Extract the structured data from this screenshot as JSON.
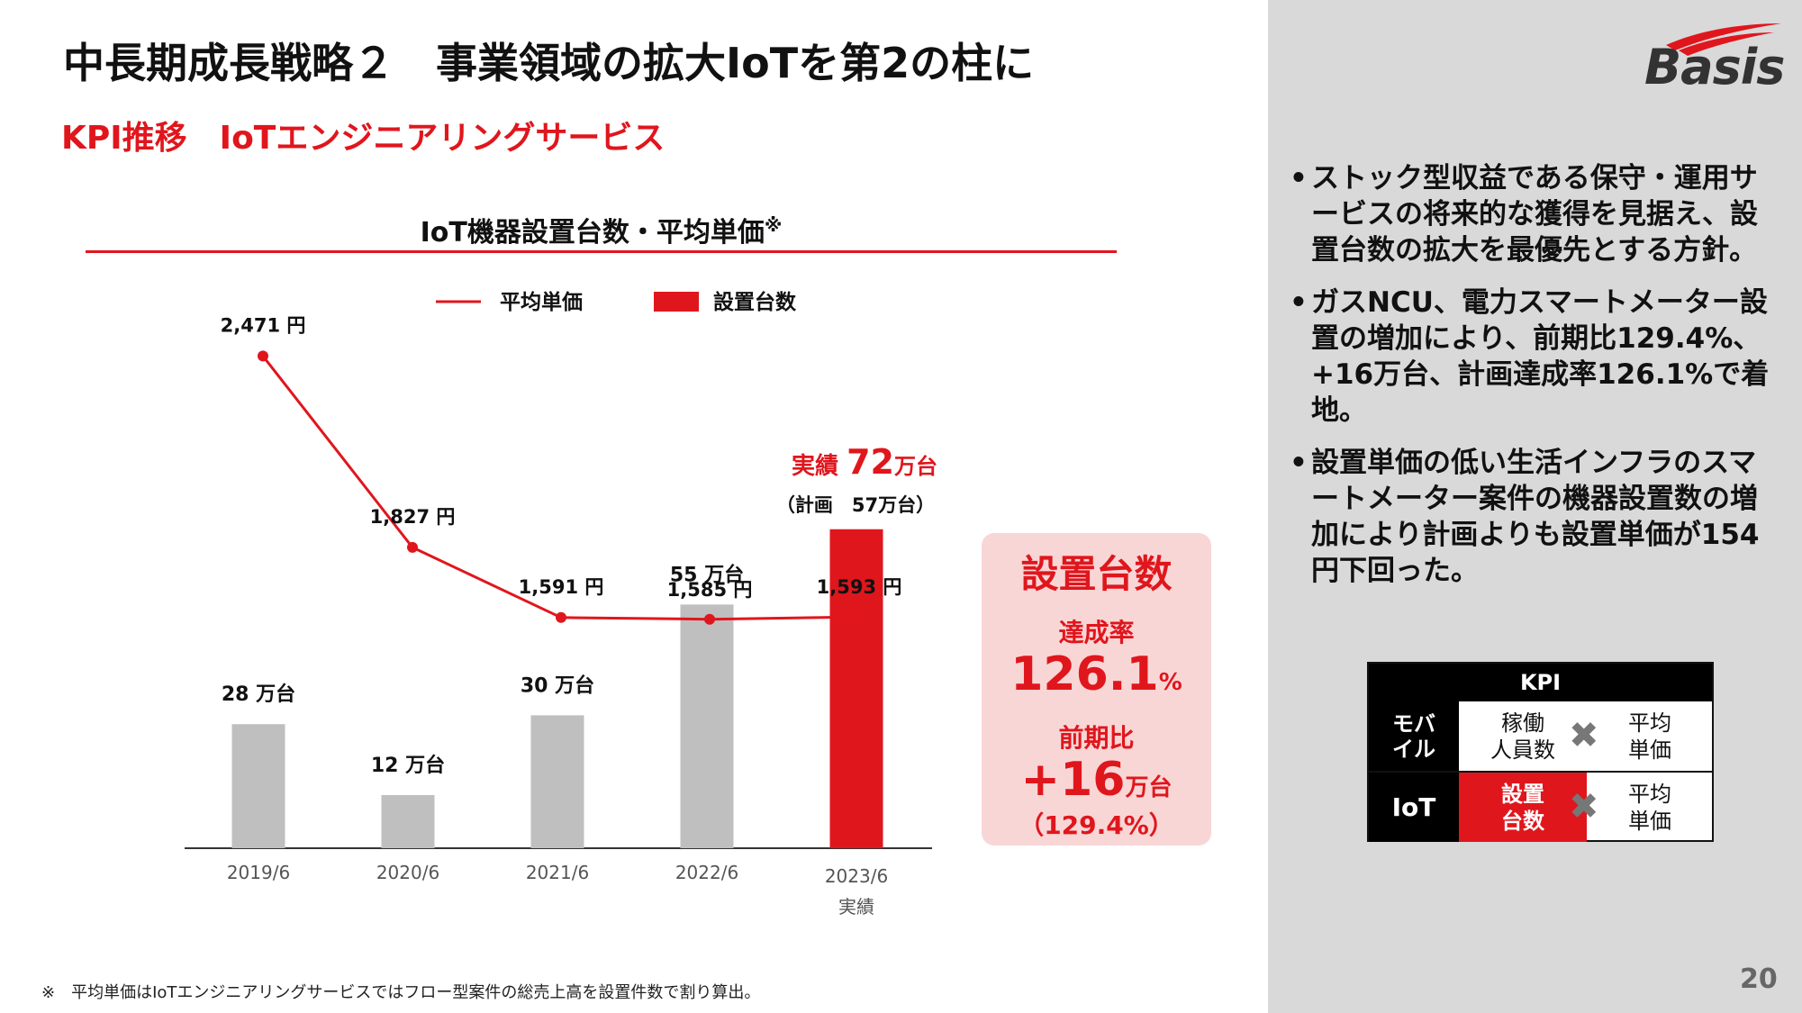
{
  "title": "中長期成長戦略２　事業領域の拡大IoTを第2の柱に",
  "subtitle": "KPI推移　IoTエンジニアリングサービス",
  "chart_title": "IoT機器設置台数・平均単価",
  "chart_title_mark": "※",
  "chart_data": {
    "type": "bar",
    "title": "IoT機器設置台数・平均単価※",
    "categories": [
      "2019/6",
      "2020/6",
      "2021/6",
      "2022/6",
      "2023/6"
    ],
    "category_sub": [
      "",
      "",
      "",
      "",
      "実績"
    ],
    "legend": [
      "平均単価",
      "設置台数"
    ],
    "series": [
      {
        "name": "設置台数",
        "type": "bar",
        "unit": "万台",
        "values": [
          28,
          12,
          30,
          55,
          72
        ],
        "labels": [
          "28 万台",
          "12 万台",
          "30 万台",
          "55 万台",
          ""
        ],
        "colors": [
          "#bfbfbf",
          "#bfbfbf",
          "#bfbfbf",
          "#bfbfbf",
          "#e0161d"
        ]
      },
      {
        "name": "平均単価",
        "type": "line",
        "unit": "円",
        "values": [
          2471,
          1827,
          1591,
          1585,
          1593
        ],
        "labels": [
          "2,471 円",
          "1,827 円",
          "1,591 円",
          "1,585 円",
          "1,593 円"
        ],
        "color": "#e0161d"
      }
    ],
    "last_bar_annotation": {
      "prefix": "実績",
      "value": "72",
      "unit": "万台",
      "plan": "（計画　57万台）"
    }
  },
  "kpi_box": {
    "title": "設置台数",
    "achievement_label": "達成率",
    "achievement_value": "126.1",
    "achievement_unit": "%",
    "yoy_label": "前期比",
    "yoy_value": "+16",
    "yoy_unit": "万台",
    "yoy_pct": "（129.4%）"
  },
  "logo_text": "Basis",
  "bullets": [
    "ストック型収益である保守・運用サービスの将来的な獲得を見据え、設置台数の拡大を最優先とする方針。",
    "ガスNCU、電力スマートメーター設置の増加により、前期比129.4%、+16万台、計画達成率126.1%で着地。",
    "設置単価の低い生活インフラのスマートメーター案件の機器設置数の増加により計画よりも設置単価が154円下回った。"
  ],
  "kpi_table": {
    "header": "KPI",
    "rows": [
      {
        "label": "モバ\nイル",
        "c1": "稼働\n人員数",
        "c2": "平均\n単価"
      },
      {
        "label": "IoT",
        "c1": "設置\n台数",
        "c2": "平均\n単価"
      }
    ],
    "times": "✖"
  },
  "footnote": "※　平均単価はIoTエンジニアリングサービスではフロー型案件の総売上高を設置件数で割り算出。",
  "page_number": "20",
  "colors": {
    "accent": "#e0161d",
    "bar_gray": "#bfbfbf",
    "panel": "#d9d9d9",
    "kpi_box_bg": "#f9d6d6"
  }
}
